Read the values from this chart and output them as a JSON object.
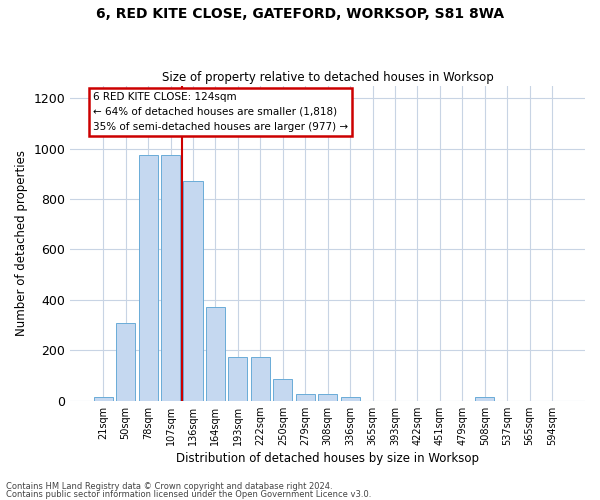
{
  "title": "6, RED KITE CLOSE, GATEFORD, WORKSOP, S81 8WA",
  "subtitle": "Size of property relative to detached houses in Worksop",
  "xlabel": "Distribution of detached houses by size in Worksop",
  "ylabel": "Number of detached properties",
  "categories": [
    "21sqm",
    "50sqm",
    "78sqm",
    "107sqm",
    "136sqm",
    "164sqm",
    "193sqm",
    "222sqm",
    "250sqm",
    "279sqm",
    "308sqm",
    "336sqm",
    "365sqm",
    "393sqm",
    "422sqm",
    "451sqm",
    "479sqm",
    "508sqm",
    "537sqm",
    "565sqm",
    "594sqm"
  ],
  "values": [
    13,
    310,
    975,
    975,
    872,
    370,
    175,
    175,
    85,
    27,
    27,
    13,
    0,
    0,
    0,
    0,
    0,
    13,
    0,
    0,
    0
  ],
  "bar_color": "#c5d8f0",
  "bar_edge_color": "#6aacd8",
  "annotation_text": "6 RED KITE CLOSE: 124sqm\n← 64% of detached houses are smaller (1,818)\n35% of semi-detached houses are larger (977) →",
  "annotation_box_color": "#ffffff",
  "annotation_border_color": "#cc0000",
  "vline_x": 3.5,
  "vline_color": "#cc0000",
  "ylim": [
    0,
    1250
  ],
  "yticks": [
    0,
    200,
    400,
    600,
    800,
    1000,
    1200
  ],
  "footer_line1": "Contains HM Land Registry data © Crown copyright and database right 2024.",
  "footer_line2": "Contains public sector information licensed under the Open Government Licence v3.0.",
  "background_color": "#ffffff",
  "grid_color": "#c8d4e4"
}
